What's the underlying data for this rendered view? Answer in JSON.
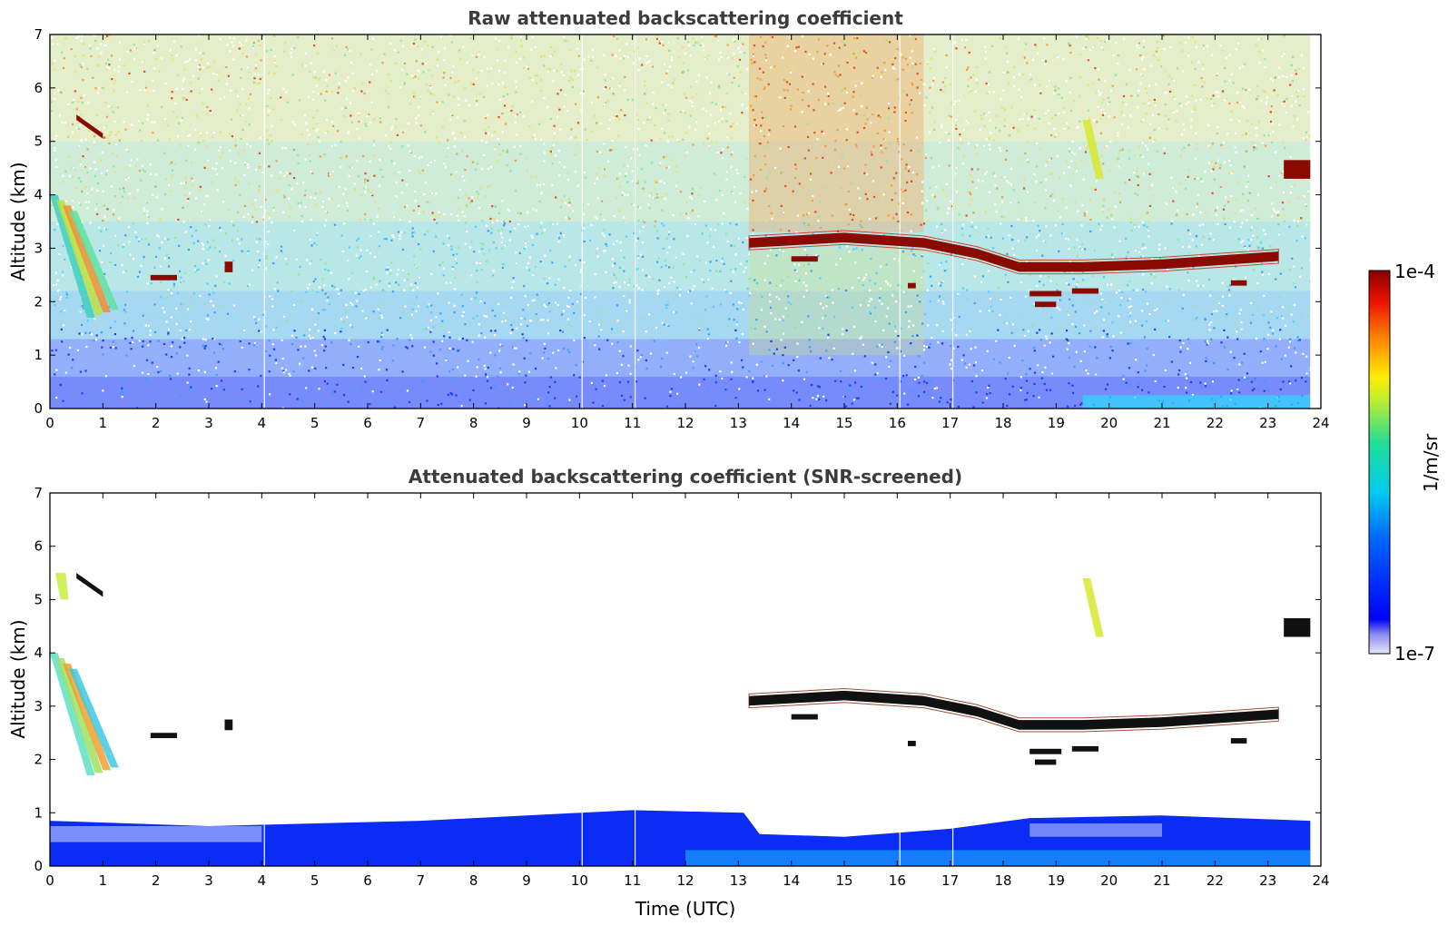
{
  "chart_data": [
    {
      "type": "heatmap",
      "title": "Raw attenuated backscattering coefficient",
      "xlabel": "",
      "ylabel": "Altitude (km)",
      "xlim": [
        0,
        24
      ],
      "ylim": [
        0,
        7
      ],
      "xticks": [
        0,
        1,
        2,
        3,
        4,
        5,
        6,
        7,
        8,
        9,
        10,
        11,
        12,
        13,
        14,
        15,
        16,
        17,
        18,
        19,
        20,
        21,
        22,
        23,
        24
      ],
      "yticks": [
        0,
        1,
        2,
        3,
        4,
        5,
        6,
        7
      ],
      "data_end_time": 23.8,
      "screened": false,
      "features": [
        {
          "kind": "surface_aerosol_layer",
          "time_range": [
            0,
            23.8
          ],
          "altitude_range": [
            0,
            0.6
          ]
        },
        {
          "kind": "cloud_layer",
          "time_range": [
            13.2,
            23.2
          ],
          "altitude_approx": [
            3.1,
            3.2,
            3.1,
            2.9,
            2.65,
            2.65,
            2.7,
            2.85
          ],
          "times_approx": [
            13.2,
            15.0,
            16.5,
            17.5,
            18.3,
            19.5,
            21.0,
            23.2
          ]
        },
        {
          "kind": "cloud_fragment",
          "time_range": [
            23.3,
            23.8
          ],
          "altitude_range": [
            4.3,
            4.7
          ]
        },
        {
          "kind": "cirrus_streaks",
          "time_range": [
            0,
            1.2
          ],
          "altitude_range": [
            1.7,
            4.0
          ]
        },
        {
          "kind": "cloud_fragment",
          "time_range": [
            0.5,
            1.0
          ],
          "altitude_range": [
            5.0,
            5.5
          ]
        },
        {
          "kind": "cloud_fragment",
          "time_range": [
            1.8,
            2.4
          ],
          "altitude_range": [
            2.4,
            2.5
          ]
        },
        {
          "kind": "virga",
          "time_range": [
            19.5,
            19.9
          ],
          "altitude_range": [
            4.3,
            5.3
          ]
        }
      ]
    },
    {
      "type": "heatmap",
      "title": "Attenuated backscattering coefficient (SNR-screened)",
      "xlabel": "Time (UTC)",
      "ylabel": "Altitude (km)",
      "xlim": [
        0,
        24
      ],
      "ylim": [
        0,
        7
      ],
      "xticks": [
        0,
        1,
        2,
        3,
        4,
        5,
        6,
        7,
        8,
        9,
        10,
        11,
        12,
        13,
        14,
        15,
        16,
        17,
        18,
        19,
        20,
        21,
        22,
        23,
        24
      ],
      "yticks": [
        0,
        1,
        2,
        3,
        4,
        5,
        6,
        7
      ],
      "data_end_time": 23.8,
      "screened": true
    }
  ],
  "colorbar": {
    "label": "1/m/sr",
    "max_label": "1e-4",
    "min_label": "1e-7",
    "min": 1e-07,
    "max": 0.0001,
    "scale": "log",
    "colormap": "jet",
    "colors": [
      "#dcdcf5",
      "#0000ff",
      "#00aaff",
      "#00e6c8",
      "#aaee44",
      "#f0f000",
      "#ff8000",
      "#e60000",
      "#8b0000"
    ]
  }
}
